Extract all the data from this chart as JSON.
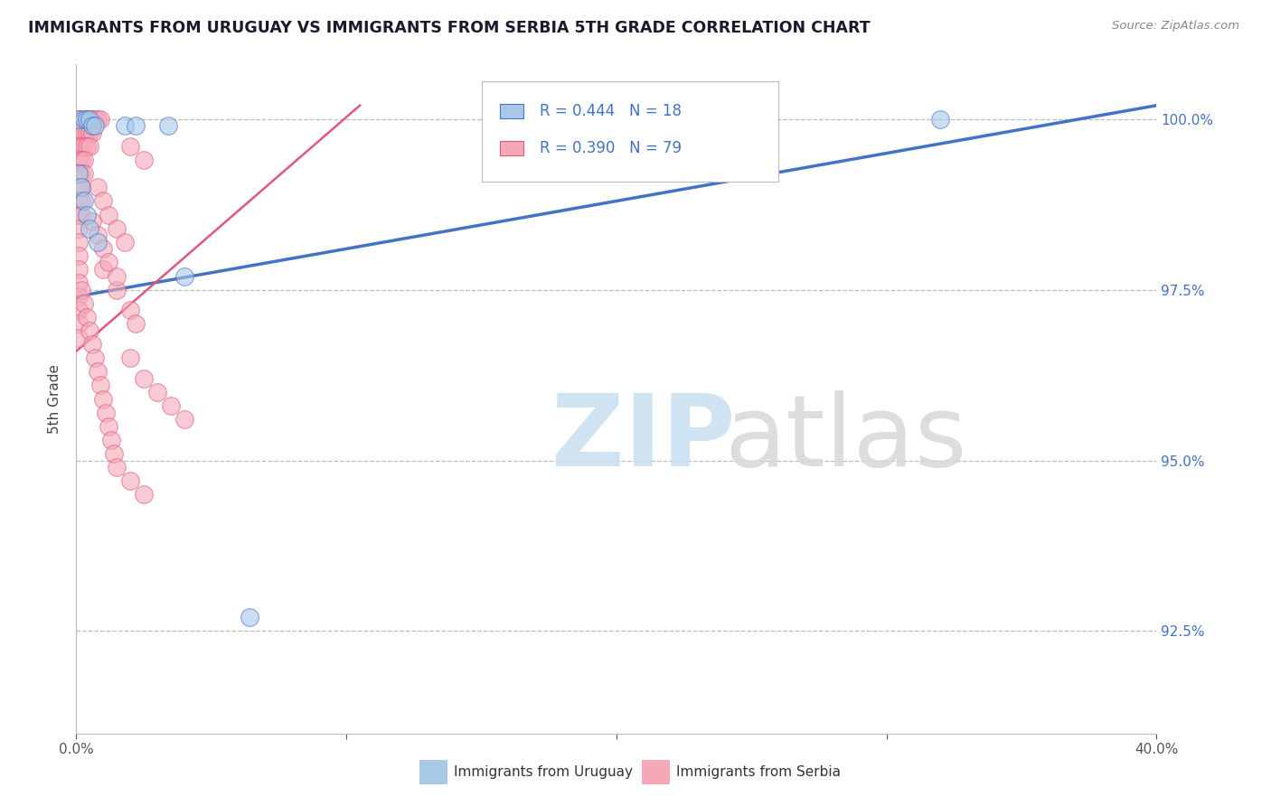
{
  "title": "IMMIGRANTS FROM URUGUAY VS IMMIGRANTS FROM SERBIA 5TH GRADE CORRELATION CHART",
  "source": "Source: ZipAtlas.com",
  "ylabel": "5th Grade",
  "ytick_labels": [
    "92.5%",
    "95.0%",
    "97.5%",
    "100.0%"
  ],
  "ytick_values": [
    0.925,
    0.95,
    0.975,
    1.0
  ],
  "xlim": [
    0.0,
    0.4
  ],
  "ylim": [
    0.91,
    1.008
  ],
  "blue_color": "#A8C8E8",
  "pink_color": "#F4A8B8",
  "line_blue_color": "#4472C4",
  "line_pink_color": "#E05878",
  "blue_line": [
    [
      0.0,
      0.974
    ],
    [
      0.4,
      1.002
    ]
  ],
  "pink_line": [
    [
      0.0,
      0.966
    ],
    [
      0.105,
      1.002
    ]
  ],
  "blue_points": [
    [
      0.001,
      1.0
    ],
    [
      0.003,
      1.0
    ],
    [
      0.004,
      1.0
    ],
    [
      0.005,
      1.0
    ],
    [
      0.006,
      0.999
    ],
    [
      0.007,
      0.999
    ],
    [
      0.018,
      0.999
    ],
    [
      0.022,
      0.999
    ],
    [
      0.034,
      0.999
    ],
    [
      0.001,
      0.992
    ],
    [
      0.002,
      0.99
    ],
    [
      0.003,
      0.988
    ],
    [
      0.004,
      0.986
    ],
    [
      0.005,
      0.984
    ],
    [
      0.008,
      0.982
    ],
    [
      0.04,
      0.977
    ],
    [
      0.32,
      1.0
    ],
    [
      0.064,
      0.927
    ]
  ],
  "pink_points": [
    [
      0.001,
      1.0
    ],
    [
      0.002,
      1.0
    ],
    [
      0.003,
      1.0
    ],
    [
      0.004,
      1.0
    ],
    [
      0.005,
      1.0
    ],
    [
      0.006,
      1.0
    ],
    [
      0.007,
      1.0
    ],
    [
      0.008,
      1.0
    ],
    [
      0.009,
      1.0
    ],
    [
      0.001,
      0.998
    ],
    [
      0.002,
      0.998
    ],
    [
      0.003,
      0.998
    ],
    [
      0.004,
      0.998
    ],
    [
      0.005,
      0.998
    ],
    [
      0.006,
      0.998
    ],
    [
      0.001,
      0.996
    ],
    [
      0.002,
      0.996
    ],
    [
      0.003,
      0.996
    ],
    [
      0.004,
      0.996
    ],
    [
      0.005,
      0.996
    ],
    [
      0.001,
      0.994
    ],
    [
      0.002,
      0.994
    ],
    [
      0.003,
      0.994
    ],
    [
      0.001,
      0.992
    ],
    [
      0.002,
      0.992
    ],
    [
      0.003,
      0.992
    ],
    [
      0.001,
      0.99
    ],
    [
      0.002,
      0.99
    ],
    [
      0.001,
      0.988
    ],
    [
      0.002,
      0.988
    ],
    [
      0.001,
      0.986
    ],
    [
      0.002,
      0.986
    ],
    [
      0.001,
      0.984
    ],
    [
      0.001,
      0.982
    ],
    [
      0.001,
      0.98
    ],
    [
      0.001,
      0.978
    ],
    [
      0.001,
      0.976
    ],
    [
      0.001,
      0.974
    ],
    [
      0.001,
      0.972
    ],
    [
      0.001,
      0.97
    ],
    [
      0.001,
      0.968
    ],
    [
      0.008,
      0.99
    ],
    [
      0.01,
      0.988
    ],
    [
      0.012,
      0.986
    ],
    [
      0.015,
      0.984
    ],
    [
      0.018,
      0.982
    ],
    [
      0.02,
      0.996
    ],
    [
      0.025,
      0.994
    ],
    [
      0.01,
      0.978
    ],
    [
      0.015,
      0.975
    ],
    [
      0.02,
      0.972
    ],
    [
      0.022,
      0.97
    ],
    [
      0.006,
      0.985
    ],
    [
      0.008,
      0.983
    ],
    [
      0.01,
      0.981
    ],
    [
      0.012,
      0.979
    ],
    [
      0.015,
      0.977
    ],
    [
      0.02,
      0.965
    ],
    [
      0.025,
      0.962
    ],
    [
      0.03,
      0.96
    ],
    [
      0.035,
      0.958
    ],
    [
      0.04,
      0.956
    ],
    [
      0.002,
      0.975
    ],
    [
      0.003,
      0.973
    ],
    [
      0.004,
      0.971
    ],
    [
      0.005,
      0.969
    ],
    [
      0.006,
      0.967
    ],
    [
      0.007,
      0.965
    ],
    [
      0.008,
      0.963
    ],
    [
      0.009,
      0.961
    ],
    [
      0.01,
      0.959
    ],
    [
      0.011,
      0.957
    ],
    [
      0.012,
      0.955
    ],
    [
      0.013,
      0.953
    ],
    [
      0.014,
      0.951
    ],
    [
      0.015,
      0.949
    ],
    [
      0.02,
      0.947
    ],
    [
      0.025,
      0.945
    ]
  ]
}
